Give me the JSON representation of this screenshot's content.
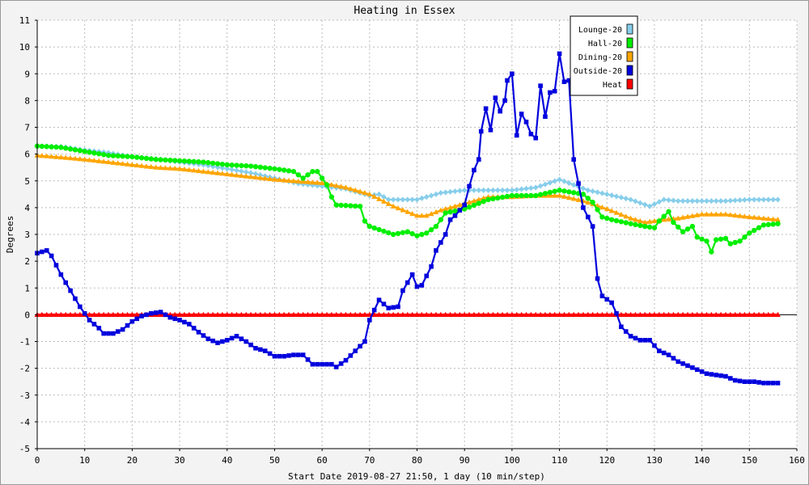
{
  "chart_data": {
    "type": "line",
    "title": "Heating in Essex",
    "xlabel": "Start Date 2019-08-27 21:50, 1 day (10 min/step)",
    "ylabel": "Degrees",
    "xlim": [
      0,
      160
    ],
    "ylim": [
      -5,
      11
    ],
    "xticks": [
      0,
      10,
      20,
      30,
      40,
      50,
      60,
      70,
      80,
      90,
      100,
      110,
      120,
      130,
      140,
      150,
      160
    ],
    "yticks": [
      -5,
      -4,
      -3,
      -2,
      -1,
      0,
      1,
      2,
      3,
      4,
      5,
      6,
      7,
      8,
      9,
      10,
      11
    ],
    "grid": true,
    "legend_position": "top-right",
    "series": [
      {
        "name": "Lounge-20",
        "color": "#87ceeb",
        "marker": "diamond",
        "points": [
          [
            0,
            6.3
          ],
          [
            5,
            6.28
          ],
          [
            10,
            6.15
          ],
          [
            15,
            6.05
          ],
          [
            20,
            5.9
          ],
          [
            25,
            5.82
          ],
          [
            30,
            5.7
          ],
          [
            35,
            5.6
          ],
          [
            40,
            5.45
          ],
          [
            45,
            5.3
          ],
          [
            50,
            5.1
          ],
          [
            55,
            4.9
          ],
          [
            60,
            4.8
          ],
          [
            65,
            4.7
          ],
          [
            70,
            4.45
          ],
          [
            72,
            4.5
          ],
          [
            74,
            4.3
          ],
          [
            80,
            4.3
          ],
          [
            85,
            4.55
          ],
          [
            90,
            4.65
          ],
          [
            95,
            4.65
          ],
          [
            100,
            4.65
          ],
          [
            105,
            4.75
          ],
          [
            110,
            5.05
          ],
          [
            113,
            4.85
          ],
          [
            116,
            4.65
          ],
          [
            120,
            4.5
          ],
          [
            125,
            4.3
          ],
          [
            129,
            4.05
          ],
          [
            132,
            4.3
          ],
          [
            135,
            4.25
          ],
          [
            140,
            4.25
          ],
          [
            145,
            4.25
          ],
          [
            150,
            4.3
          ],
          [
            156,
            4.3
          ]
        ]
      },
      {
        "name": "Hall-20",
        "color": "#00ee00",
        "marker": "circle",
        "points": [
          [
            0,
            6.3
          ],
          [
            5,
            6.25
          ],
          [
            10,
            6.1
          ],
          [
            15,
            5.95
          ],
          [
            20,
            5.9
          ],
          [
            25,
            5.8
          ],
          [
            30,
            5.75
          ],
          [
            35,
            5.7
          ],
          [
            40,
            5.6
          ],
          [
            45,
            5.55
          ],
          [
            50,
            5.45
          ],
          [
            54,
            5.35
          ],
          [
            56,
            5.1
          ],
          [
            58,
            5.35
          ],
          [
            59,
            5.35
          ],
          [
            61,
            4.85
          ],
          [
            62,
            4.4
          ],
          [
            63,
            4.1
          ],
          [
            68,
            4.05
          ],
          [
            69,
            3.5
          ],
          [
            70,
            3.3
          ],
          [
            75,
            3.0
          ],
          [
            78,
            3.1
          ],
          [
            80,
            2.95
          ],
          [
            82,
            3.05
          ],
          [
            84,
            3.3
          ],
          [
            86,
            3.8
          ],
          [
            90,
            3.95
          ],
          [
            95,
            4.3
          ],
          [
            100,
            4.45
          ],
          [
            105,
            4.45
          ],
          [
            110,
            4.65
          ],
          [
            115,
            4.5
          ],
          [
            117,
            4.2
          ],
          [
            119,
            3.65
          ],
          [
            121,
            3.55
          ],
          [
            125,
            3.4
          ],
          [
            128,
            3.3
          ],
          [
            130,
            3.25
          ],
          [
            131,
            3.5
          ],
          [
            133,
            3.85
          ],
          [
            134,
            3.45
          ],
          [
            136,
            3.1
          ],
          [
            138,
            3.3
          ],
          [
            139,
            2.9
          ],
          [
            141,
            2.75
          ],
          [
            142,
            2.35
          ],
          [
            143,
            2.8
          ],
          [
            145,
            2.85
          ],
          [
            146,
            2.65
          ],
          [
            148,
            2.75
          ],
          [
            150,
            3.05
          ],
          [
            153,
            3.35
          ],
          [
            156,
            3.4
          ]
        ]
      },
      {
        "name": "Dining-20",
        "color": "#ffa500",
        "marker": "triangle",
        "points": [
          [
            0,
            5.95
          ],
          [
            5,
            5.88
          ],
          [
            10,
            5.8
          ],
          [
            15,
            5.7
          ],
          [
            20,
            5.6
          ],
          [
            25,
            5.5
          ],
          [
            30,
            5.45
          ],
          [
            35,
            5.35
          ],
          [
            40,
            5.25
          ],
          [
            45,
            5.15
          ],
          [
            50,
            5.05
          ],
          [
            55,
            4.98
          ],
          [
            60,
            4.92
          ],
          [
            65,
            4.75
          ],
          [
            70,
            4.5
          ],
          [
            75,
            4.05
          ],
          [
            80,
            3.7
          ],
          [
            82,
            3.7
          ],
          [
            85,
            3.9
          ],
          [
            90,
            4.15
          ],
          [
            95,
            4.4
          ],
          [
            100,
            4.4
          ],
          [
            105,
            4.45
          ],
          [
            110,
            4.45
          ],
          [
            115,
            4.25
          ],
          [
            120,
            3.95
          ],
          [
            125,
            3.6
          ],
          [
            128,
            3.45
          ],
          [
            132,
            3.55
          ],
          [
            135,
            3.6
          ],
          [
            140,
            3.75
          ],
          [
            145,
            3.75
          ],
          [
            150,
            3.65
          ],
          [
            156,
            3.55
          ]
        ]
      },
      {
        "name": "Outside-20",
        "color": "#0000dd",
        "marker": "square",
        "points": [
          [
            0,
            2.3
          ],
          [
            2,
            2.4
          ],
          [
            3,
            2.2
          ],
          [
            5,
            1.5
          ],
          [
            7,
            0.9
          ],
          [
            9,
            0.3
          ],
          [
            11,
            -0.2
          ],
          [
            13,
            -0.5
          ],
          [
            14,
            -0.7
          ],
          [
            16,
            -0.7
          ],
          [
            18,
            -0.55
          ],
          [
            20,
            -0.25
          ],
          [
            22,
            -0.05
          ],
          [
            24,
            0.05
          ],
          [
            26,
            0.1
          ],
          [
            28,
            -0.1
          ],
          [
            30,
            -0.2
          ],
          [
            32,
            -0.35
          ],
          [
            34,
            -0.65
          ],
          [
            36,
            -0.9
          ],
          [
            38,
            -1.05
          ],
          [
            40,
            -0.95
          ],
          [
            42,
            -0.8
          ],
          [
            44,
            -1.0
          ],
          [
            46,
            -1.25
          ],
          [
            48,
            -1.35
          ],
          [
            50,
            -1.55
          ],
          [
            52,
            -1.55
          ],
          [
            54,
            -1.5
          ],
          [
            56,
            -1.5
          ],
          [
            58,
            -1.85
          ],
          [
            60,
            -1.85
          ],
          [
            62,
            -1.85
          ],
          [
            63,
            -1.95
          ],
          [
            65,
            -1.7
          ],
          [
            67,
            -1.35
          ],
          [
            69,
            -1.0
          ],
          [
            70,
            -0.2
          ],
          [
            72,
            0.55
          ],
          [
            74,
            0.25
          ],
          [
            76,
            0.3
          ],
          [
            77,
            0.9
          ],
          [
            79,
            1.5
          ],
          [
            80,
            1.05
          ],
          [
            81,
            1.1
          ],
          [
            83,
            1.8
          ],
          [
            84,
            2.4
          ],
          [
            86,
            3.0
          ],
          [
            87,
            3.55
          ],
          [
            88,
            3.7
          ],
          [
            90,
            4.1
          ],
          [
            91,
            4.8
          ],
          [
            92,
            5.4
          ],
          [
            93,
            5.8
          ],
          [
            93.5,
            6.85
          ],
          [
            94.5,
            7.7
          ],
          [
            95.5,
            6.9
          ],
          [
            96.5,
            8.1
          ],
          [
            97.5,
            7.6
          ],
          [
            98.5,
            8.0
          ],
          [
            99,
            8.75
          ],
          [
            100,
            9.0
          ],
          [
            101,
            6.7
          ],
          [
            102,
            7.5
          ],
          [
            103,
            7.2
          ],
          [
            104,
            6.75
          ],
          [
            105,
            6.6
          ],
          [
            106,
            8.55
          ],
          [
            107,
            7.4
          ],
          [
            108,
            8.3
          ],
          [
            109,
            8.35
          ],
          [
            110,
            9.75
          ],
          [
            111,
            8.7
          ],
          [
            112,
            8.75
          ],
          [
            113,
            5.8
          ],
          [
            115,
            4.0
          ],
          [
            117,
            3.3
          ],
          [
            118,
            1.35
          ],
          [
            119,
            0.7
          ],
          [
            121,
            0.45
          ],
          [
            122,
            0.05
          ],
          [
            123,
            -0.45
          ],
          [
            125,
            -0.8
          ],
          [
            127,
            -0.95
          ],
          [
            129,
            -0.95
          ],
          [
            131,
            -1.35
          ],
          [
            133,
            -1.5
          ],
          [
            135,
            -1.75
          ],
          [
            137,
            -1.9
          ],
          [
            139,
            -2.05
          ],
          [
            141,
            -2.2
          ],
          [
            143,
            -2.25
          ],
          [
            145,
            -2.3
          ],
          [
            147,
            -2.45
          ],
          [
            149,
            -2.5
          ],
          [
            151,
            -2.5
          ],
          [
            153,
            -2.55
          ],
          [
            156,
            -2.55
          ]
        ]
      },
      {
        "name": "Heat",
        "color": "#ff0000",
        "marker": "triangle",
        "constant": 0,
        "xrange": [
          0,
          156
        ]
      }
    ]
  }
}
